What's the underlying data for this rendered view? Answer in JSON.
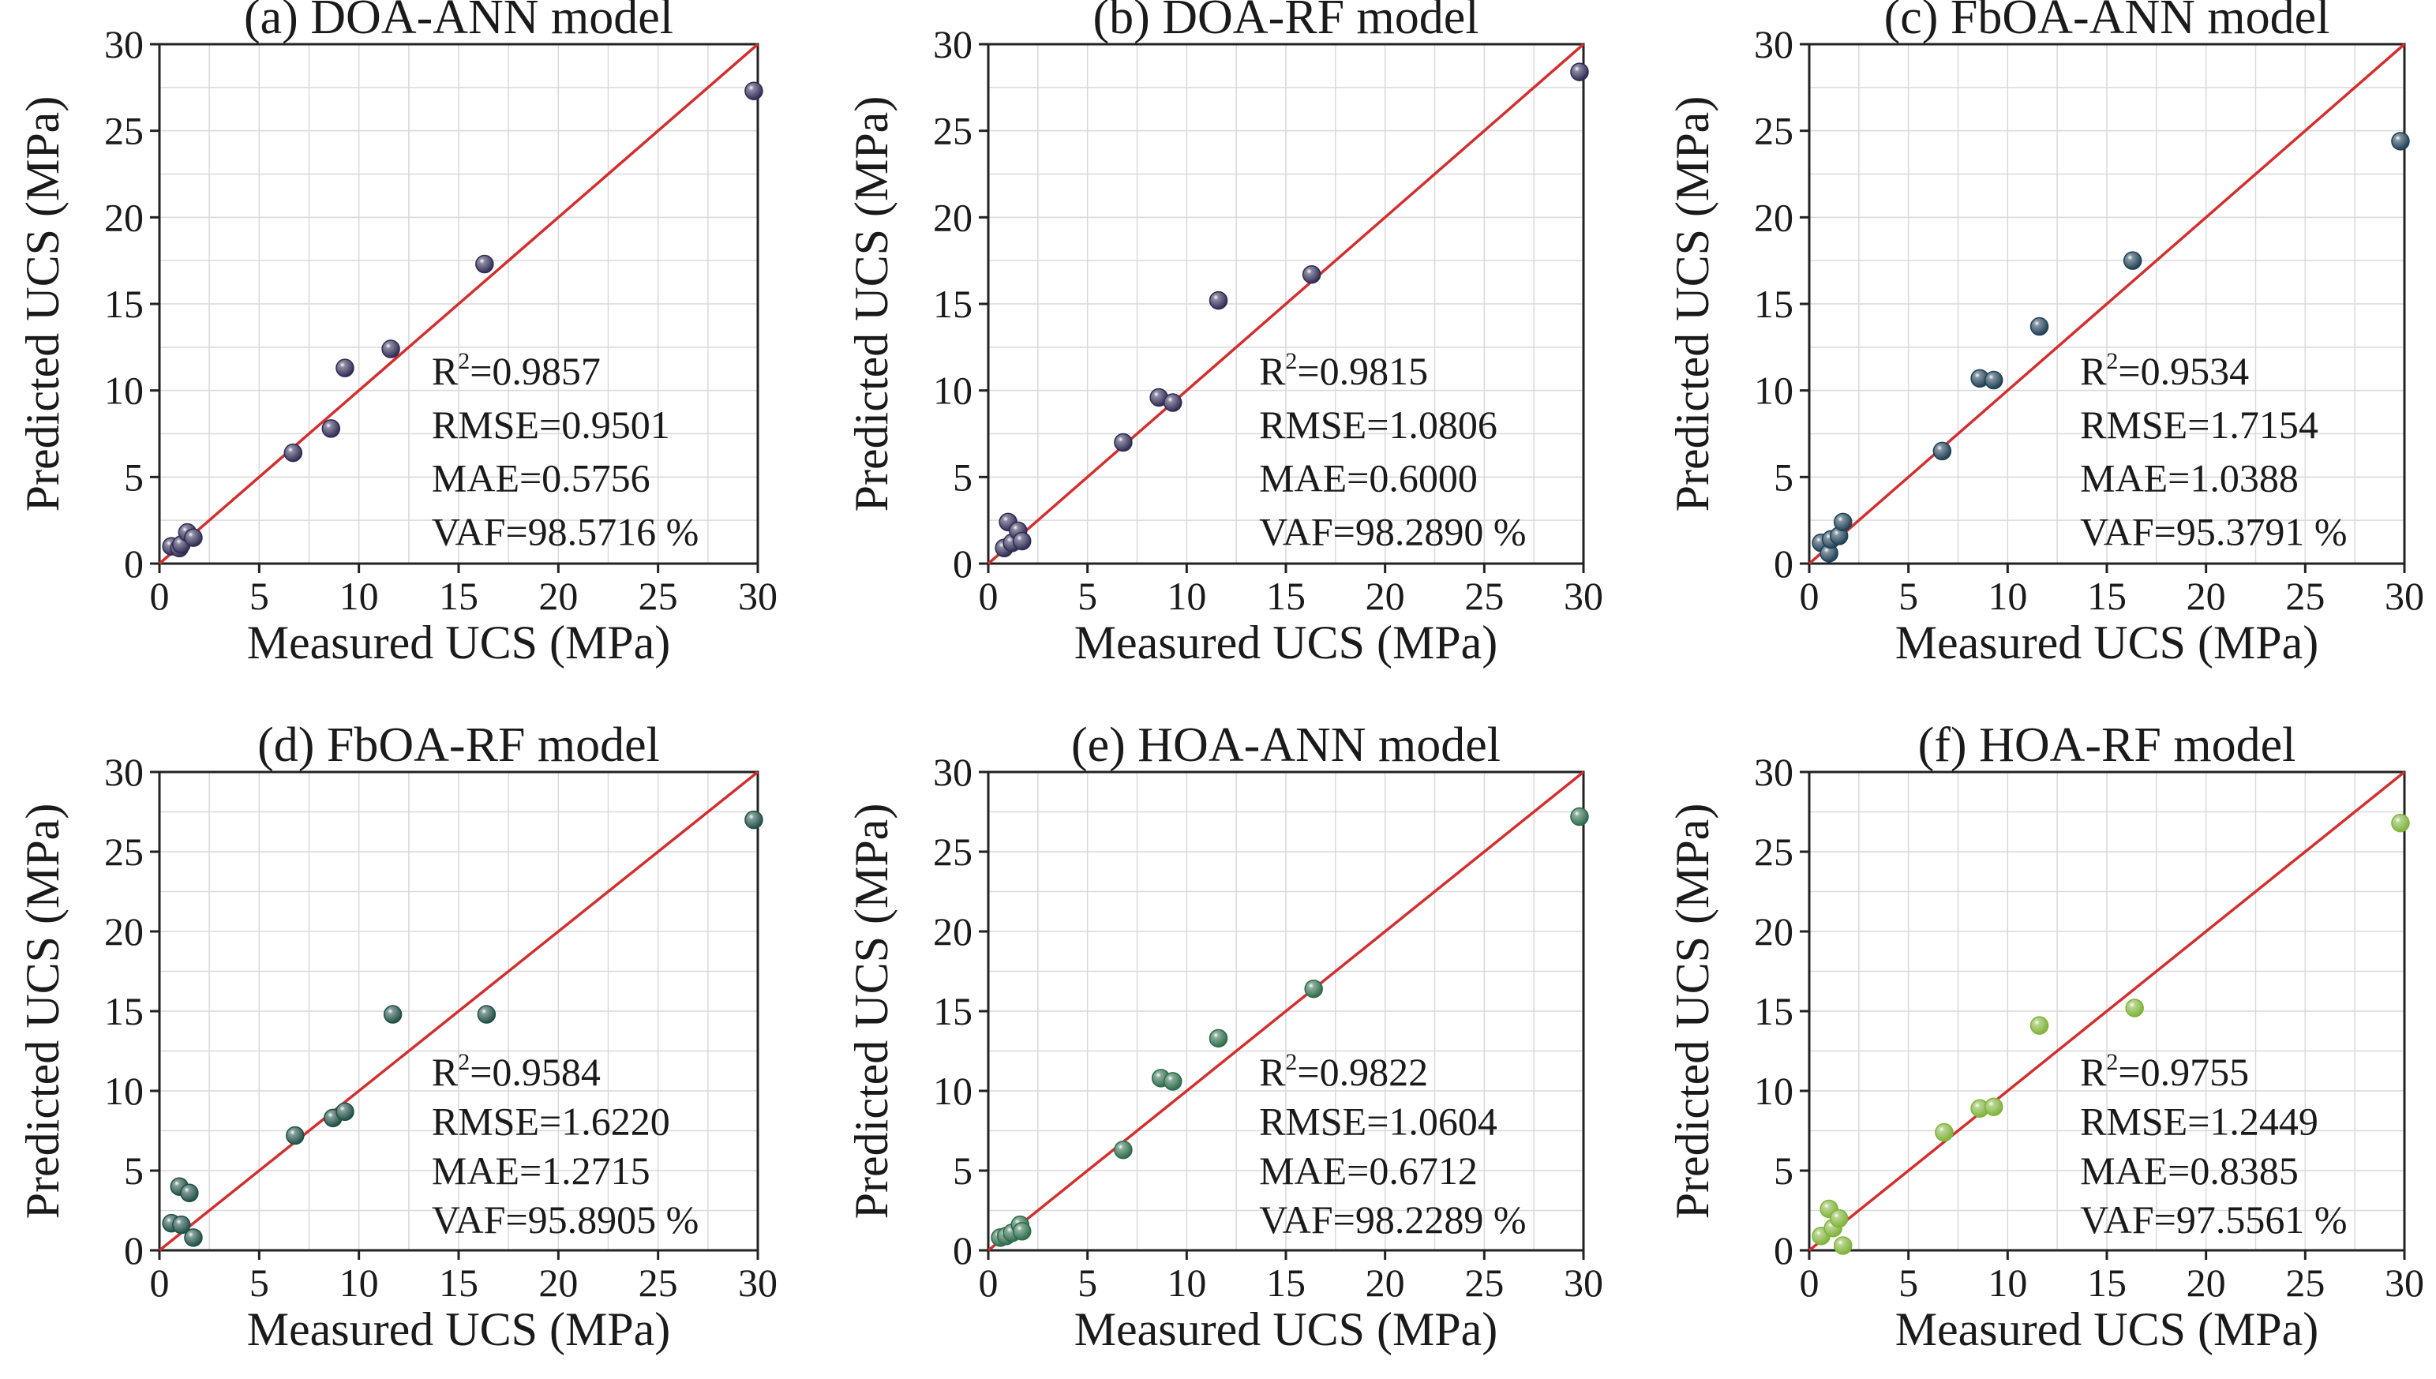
{
  "figure": {
    "name": "ucs-prediction-comparison"
  },
  "chart_data": [
    {
      "type": "scatter",
      "title": "(a) DOA-ANN model",
      "xlabel": "Measured UCS (MPa)",
      "ylabel": "Predicted UCS (MPa)",
      "xlim": [
        0,
        30
      ],
      "ylim": [
        0,
        30
      ],
      "ticks": [
        "0",
        "5",
        "10",
        "15",
        "20",
        "25",
        "30"
      ],
      "grid": true,
      "reference_line": "y = x",
      "color": "#2e2b54",
      "metrics": {
        "r2_label": "R",
        "r2_sup": "2",
        "r2_value": "=0.9857",
        "rmse": "RMSE=0.9501",
        "mae": "MAE=0.5756",
        "vaf": "VAF=98.5716 %"
      },
      "points": [
        {
          "x": 0.6,
          "y": 1.0
        },
        {
          "x": 1.0,
          "y": 0.9
        },
        {
          "x": 1.1,
          "y": 1.1
        },
        {
          "x": 1.4,
          "y": 1.8
        },
        {
          "x": 1.7,
          "y": 1.5
        },
        {
          "x": 6.7,
          "y": 6.4
        },
        {
          "x": 8.6,
          "y": 7.8
        },
        {
          "x": 9.3,
          "y": 11.3
        },
        {
          "x": 11.6,
          "y": 12.4
        },
        {
          "x": 16.3,
          "y": 17.3
        },
        {
          "x": 29.8,
          "y": 27.3
        }
      ]
    },
    {
      "type": "scatter",
      "title": "(b) DOA-RF model",
      "xlabel": "Measured UCS (MPa)",
      "ylabel": "Predicted UCS (MPa)",
      "xlim": [
        0,
        30
      ],
      "ylim": [
        0,
        30
      ],
      "ticks": [
        "0",
        "5",
        "10",
        "15",
        "20",
        "25",
        "30"
      ],
      "grid": true,
      "reference_line": "y = x",
      "color": "#2e2b54",
      "metrics": {
        "r2_label": "R",
        "r2_sup": "2",
        "r2_value": "=0.9815",
        "rmse": "RMSE=1.0806",
        "mae": "MAE=0.6000",
        "vaf": "VAF=98.2890 %"
      },
      "points": [
        {
          "x": 0.8,
          "y": 0.9
        },
        {
          "x": 1.0,
          "y": 2.4
        },
        {
          "x": 1.2,
          "y": 1.2
        },
        {
          "x": 1.5,
          "y": 1.9
        },
        {
          "x": 1.7,
          "y": 1.3
        },
        {
          "x": 6.8,
          "y": 7.0
        },
        {
          "x": 8.6,
          "y": 9.6
        },
        {
          "x": 9.3,
          "y": 9.3
        },
        {
          "x": 11.6,
          "y": 15.2
        },
        {
          "x": 16.3,
          "y": 16.7
        },
        {
          "x": 29.8,
          "y": 28.4
        }
      ]
    },
    {
      "type": "scatter",
      "title": "(c) FbOA-ANN model",
      "xlabel": "Measured UCS (MPa)",
      "ylabel": "Predicted UCS (MPa)",
      "xlim": [
        0,
        30
      ],
      "ylim": [
        0,
        30
      ],
      "ticks": [
        "0",
        "5",
        "10",
        "15",
        "20",
        "25",
        "30"
      ],
      "grid": true,
      "reference_line": "y = x",
      "color": "#1f3f55",
      "metrics": {
        "r2_label": "R",
        "r2_sup": "2",
        "r2_value": "=0.9534",
        "rmse": "RMSE=1.7154",
        "mae": "MAE=1.0388",
        "vaf": "VAF=95.3791 %"
      },
      "points": [
        {
          "x": 0.6,
          "y": 1.2
        },
        {
          "x": 1.0,
          "y": 0.6
        },
        {
          "x": 1.1,
          "y": 1.4
        },
        {
          "x": 1.5,
          "y": 1.6
        },
        {
          "x": 1.7,
          "y": 2.4
        },
        {
          "x": 6.7,
          "y": 6.5
        },
        {
          "x": 8.6,
          "y": 10.7
        },
        {
          "x": 9.3,
          "y": 10.6
        },
        {
          "x": 11.6,
          "y": 13.7
        },
        {
          "x": 16.3,
          "y": 17.5
        },
        {
          "x": 29.8,
          "y": 24.4
        }
      ]
    },
    {
      "type": "scatter",
      "title": "(d) FbOA-RF model",
      "xlabel": "Measured UCS (MPa)",
      "ylabel": "Predicted UCS (MPa)",
      "xlim": [
        0,
        30
      ],
      "ylim": [
        0,
        30
      ],
      "ticks": [
        "0",
        "5",
        "10",
        "15",
        "20",
        "25",
        "30"
      ],
      "grid": true,
      "reference_line": "y = x",
      "color": "#1f4f45",
      "metrics": {
        "r2_label": "R",
        "r2_sup": "2",
        "r2_value": "=0.9584",
        "rmse": "RMSE=1.6220",
        "mae": "MAE=1.2715",
        "vaf": "VAF=95.8905 %"
      },
      "points": [
        {
          "x": 0.6,
          "y": 1.7
        },
        {
          "x": 1.0,
          "y": 4.0
        },
        {
          "x": 1.1,
          "y": 1.6
        },
        {
          "x": 1.5,
          "y": 3.6
        },
        {
          "x": 1.7,
          "y": 0.8
        },
        {
          "x": 6.8,
          "y": 7.2
        },
        {
          "x": 8.7,
          "y": 8.3
        },
        {
          "x": 9.3,
          "y": 8.7
        },
        {
          "x": 11.7,
          "y": 14.8
        },
        {
          "x": 16.4,
          "y": 14.8
        },
        {
          "x": 29.8,
          "y": 27.0
        }
      ]
    },
    {
      "type": "scatter",
      "title": "(e) HOA-ANN model",
      "xlabel": "Measured UCS (MPa)",
      "ylabel": "Predicted UCS (MPa)",
      "xlim": [
        0,
        30
      ],
      "ylim": [
        0,
        30
      ],
      "ticks": [
        "0",
        "5",
        "10",
        "15",
        "20",
        "25",
        "30"
      ],
      "grid": true,
      "reference_line": "y = x",
      "color": "#2d6b4b",
      "metrics": {
        "r2_label": "R",
        "r2_sup": "2",
        "r2_value": "=0.9822",
        "rmse": "RMSE=1.0604",
        "mae": "MAE=0.6712",
        "vaf": "VAF=98.2289 %"
      },
      "points": [
        {
          "x": 0.6,
          "y": 0.8
        },
        {
          "x": 0.9,
          "y": 0.9
        },
        {
          "x": 1.2,
          "y": 1.1
        },
        {
          "x": 1.6,
          "y": 1.6
        },
        {
          "x": 1.7,
          "y": 1.2
        },
        {
          "x": 6.8,
          "y": 6.3
        },
        {
          "x": 8.7,
          "y": 10.8
        },
        {
          "x": 9.3,
          "y": 10.6
        },
        {
          "x": 11.6,
          "y": 13.3
        },
        {
          "x": 16.4,
          "y": 16.4
        },
        {
          "x": 29.8,
          "y": 27.2
        }
      ]
    },
    {
      "type": "scatter",
      "title": "(f) HOA-RF model",
      "xlabel": "Measured UCS (MPa)",
      "ylabel": "Predicted UCS (MPa)",
      "xlim": [
        0,
        30
      ],
      "ylim": [
        0,
        30
      ],
      "ticks": [
        "0",
        "5",
        "10",
        "15",
        "20",
        "25",
        "30"
      ],
      "grid": true,
      "reference_line": "y = x",
      "color": "#7fb33a",
      "metrics": {
        "r2_label": "R",
        "r2_sup": "2",
        "r2_value": "=0.9755",
        "rmse": "RMSE=1.2449",
        "mae": "MAE=0.8385",
        "vaf": "VAF=97.5561 %"
      },
      "points": [
        {
          "x": 0.6,
          "y": 0.9
        },
        {
          "x": 1.0,
          "y": 2.6
        },
        {
          "x": 1.2,
          "y": 1.4
        },
        {
          "x": 1.5,
          "y": 2.0
        },
        {
          "x": 1.7,
          "y": 0.3
        },
        {
          "x": 6.8,
          "y": 7.4
        },
        {
          "x": 8.6,
          "y": 8.9
        },
        {
          "x": 9.3,
          "y": 9.0
        },
        {
          "x": 11.6,
          "y": 14.1
        },
        {
          "x": 16.4,
          "y": 15.2
        },
        {
          "x": 29.8,
          "y": 26.8
        }
      ]
    }
  ]
}
